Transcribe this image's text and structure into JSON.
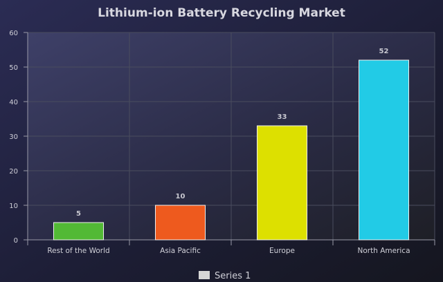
{
  "chart_data": {
    "type": "bar",
    "title": "Lithium-ion Battery Recycling Market",
    "categories": [
      "Rest of the World",
      "Asia Pacific",
      "Europe",
      "North America"
    ],
    "series": [
      {
        "name": "Series 1",
        "values": [
          5,
          10,
          33,
          52
        ]
      }
    ],
    "bar_colors": [
      "#52b935",
      "#ee5a1e",
      "#dde000",
      "#22cbe6"
    ],
    "ylim": [
      0,
      60
    ],
    "yticks": [
      0,
      10,
      20,
      30,
      40,
      50,
      60
    ],
    "xlabel": "",
    "ylabel": "",
    "grid": true,
    "legend_position": "bottom",
    "data_labels": true
  },
  "colors": {
    "title": "#d8d8e0",
    "text": "#d0d0d8",
    "grid": "#4a4d5e",
    "axis": "#9a9aa8",
    "data_label": "#c8c8d0",
    "legend_swatch": "#d6d6d6"
  }
}
